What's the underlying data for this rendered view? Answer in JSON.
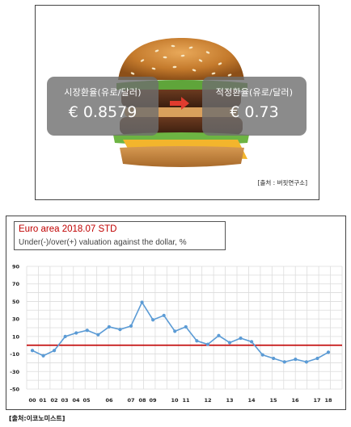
{
  "burger_panel": {
    "market_rate_label": "시장환율(유로/달러)",
    "market_rate_value": "€ 0.8579",
    "fair_rate_label": "적정환율(유로/달러)",
    "fair_rate_value": "€ 0.73",
    "source": "[출처 : 버핏연구소]"
  },
  "source_bottom": "[출처:이코노미스트]",
  "colors": {
    "line": "#5b9bd5",
    "zero_line": "#c00000",
    "title": "#c00000"
  },
  "chart_data": {
    "type": "line",
    "title": "Euro area 2018.07 STD",
    "subtitle": "Under(-)/over(+) valuation against the dollar, %",
    "xlabel": "",
    "ylabel": "",
    "y_ticks": [
      90,
      70,
      50,
      30,
      10,
      -10,
      -30,
      -50
    ],
    "ylim": [
      -50,
      90
    ],
    "x_tick_labels": [
      "00",
      "01",
      "02",
      "03",
      "04",
      "05",
      "06",
      "07",
      "08",
      "09",
      "10",
      "11",
      "12",
      "13",
      "14",
      "15",
      "16",
      "17",
      "18"
    ],
    "grid": true,
    "reference_line": 0,
    "series": [
      {
        "values": [
          -6,
          -12,
          -6,
          10,
          14,
          17,
          12,
          21,
          18,
          22,
          49,
          29,
          34,
          16,
          21,
          5,
          1,
          11,
          3,
          8,
          4,
          -11,
          -15,
          -19,
          -16,
          -19,
          -15,
          -8
        ]
      }
    ]
  }
}
